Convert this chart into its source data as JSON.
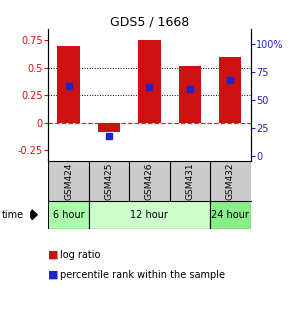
{
  "title": "GDS5 / 1668",
  "samples": [
    "GSM424",
    "GSM425",
    "GSM426",
    "GSM431",
    "GSM432"
  ],
  "log_ratios": [
    0.7,
    -0.08,
    0.75,
    0.52,
    0.6
  ],
  "percentile_ranks": [
    63,
    18,
    62,
    60,
    68
  ],
  "ylim_left": [
    -0.35,
    0.85
  ],
  "ylim_right": [
    -4.67,
    113.33
  ],
  "yticks_left": [
    -0.25,
    0,
    0.25,
    0.5,
    0.75
  ],
  "yticks_right": [
    0,
    25,
    50,
    75,
    100
  ],
  "ytick_labels_right": [
    "0",
    "25",
    "50",
    "75",
    "100%"
  ],
  "bar_color": "#cc1111",
  "dot_color": "#2222cc",
  "zero_line_color": "#cc3333",
  "dotted_line_color": "#000000",
  "bar_width": 0.55,
  "time_groups": [
    {
      "label": "6 hour",
      "samples": [
        "GSM424"
      ],
      "color": "#aaffaa"
    },
    {
      "label": "12 hour",
      "samples": [
        "GSM425",
        "GSM426",
        "GSM431"
      ],
      "color": "#ccffcc"
    },
    {
      "label": "24 hour",
      "samples": [
        "GSM432"
      ],
      "color": "#88ee88"
    }
  ],
  "left_axis_color": "#cc1111",
  "right_axis_color": "#2222cc",
  "background_color": "#ffffff"
}
